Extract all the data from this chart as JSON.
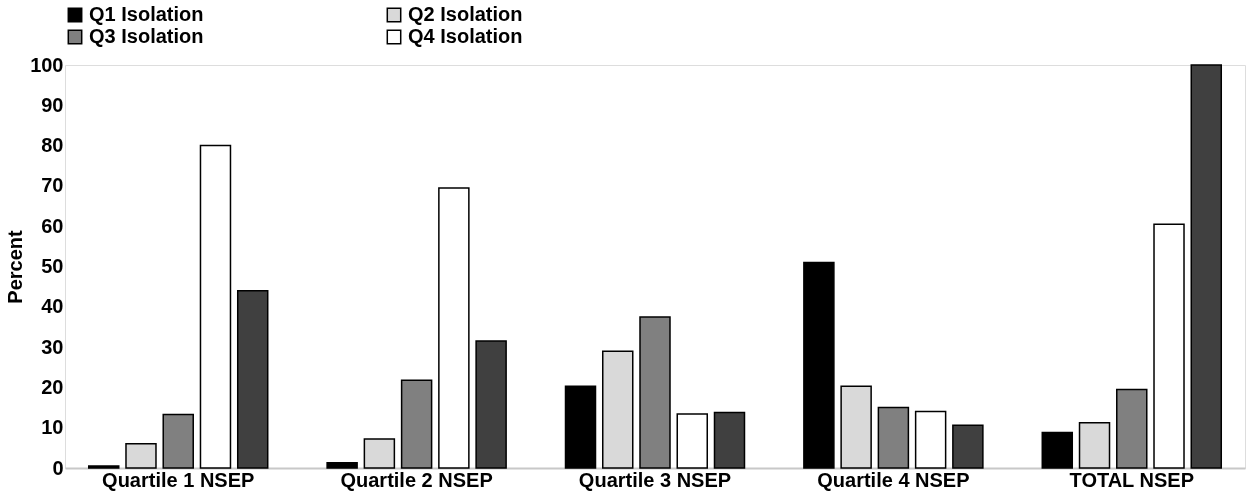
{
  "chart_data": {
    "type": "bar",
    "ylabel": "Percent",
    "categories": [
      "Quartile 1 NSEP",
      "Quartile 2 NSEP",
      "Quartile 3 NSEP",
      "Quartile 4 NSEP",
      "TOTAL NSEP"
    ],
    "series": [
      {
        "name": "Q1 Isolation",
        "color": "#000000",
        "values": [
          0.5,
          1.3,
          20.3,
          51,
          8.8
        ]
      },
      {
        "name": "Q2 Isolation",
        "color": "#d9d9d9",
        "values": [
          6,
          7.2,
          29,
          20.3,
          11.2
        ]
      },
      {
        "name": "Q3 Isolation",
        "color": "#808080",
        "values": [
          13.3,
          21.8,
          37.5,
          15,
          19.5
        ]
      },
      {
        "name": "Q4 Isolation",
        "color": "#ffffff",
        "values": [
          80,
          69.5,
          13.4,
          14,
          60.5
        ]
      },
      {
        "color": "#404040",
        "values": [
          44,
          31.5,
          13.8,
          10.6,
          100
        ]
      }
    ],
    "ylim": [
      0,
      100
    ],
    "yticks": [
      0,
      10,
      20,
      30,
      40,
      50,
      60,
      70,
      80,
      90,
      100
    ],
    "grid": false,
    "legend": "top"
  }
}
